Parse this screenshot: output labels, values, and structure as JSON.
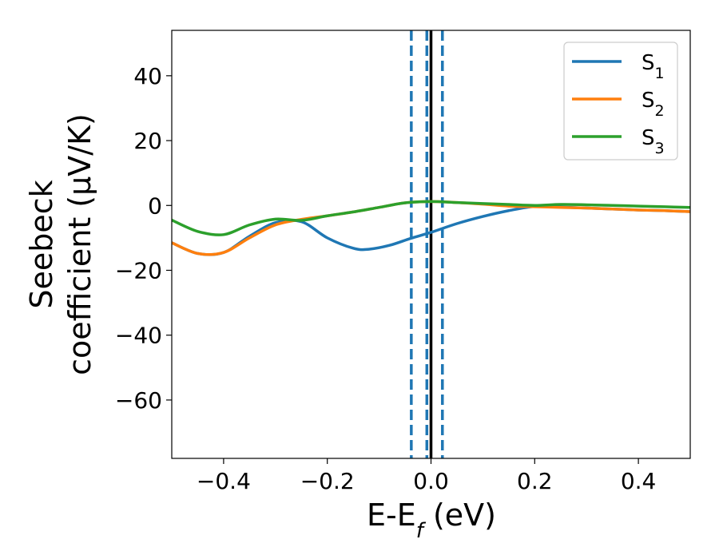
{
  "chart_data": {
    "type": "line",
    "title": "",
    "xlabel": {
      "main": "E-E",
      "sub": "f",
      "suffix": " (eV)"
    },
    "ylabel": {
      "line1": "Seebeck",
      "line2": "coefficient  (μV/K)"
    },
    "xlim": [
      -0.5,
      0.5
    ],
    "ylim": [
      -78,
      54
    ],
    "xticks": [
      -0.4,
      -0.2,
      0.0,
      0.2,
      0.4
    ],
    "xtick_labels": [
      "−0.4",
      "−0.2",
      "0.0",
      "0.2",
      "0.4"
    ],
    "yticks": [
      40,
      20,
      0,
      -20,
      -40,
      -60
    ],
    "ytick_labels": [
      "40",
      "20",
      "0",
      "−20",
      "−40",
      "−60"
    ],
    "grid": false,
    "legend_position": "top-right",
    "series": [
      {
        "name": "S",
        "name_sub": "1",
        "color": "#1f77b4",
        "x": [
          -0.5,
          -0.45,
          -0.4,
          -0.35,
          -0.3,
          -0.25,
          -0.2,
          -0.15,
          -0.12,
          -0.08,
          -0.04,
          0.0,
          0.05,
          0.1,
          0.15,
          0.2,
          0.25,
          0.3,
          0.35,
          0.4,
          0.45,
          0.5
        ],
        "y": [
          -11.5,
          -14.8,
          -14.5,
          -9.5,
          -5.3,
          -5.0,
          -10.0,
          -13.2,
          -13.5,
          -12.3,
          -10.2,
          -8.3,
          -5.6,
          -3.4,
          -1.6,
          -0.3,
          -0.5,
          -0.8,
          -1.1,
          -1.4,
          -1.6,
          -1.9
        ]
      },
      {
        "name": "S",
        "name_sub": "2",
        "color": "#ff7f0e",
        "x": [
          -0.5,
          -0.45,
          -0.4,
          -0.35,
          -0.3,
          -0.25,
          -0.2,
          -0.15,
          -0.1,
          -0.05,
          0.0,
          0.05,
          0.1,
          0.15,
          0.2,
          0.25,
          0.3,
          0.35,
          0.4,
          0.45,
          0.5
        ],
        "y": [
          -11.5,
          -14.8,
          -14.5,
          -10.0,
          -6.0,
          -4.3,
          -3.2,
          -2.0,
          -0.6,
          0.8,
          1.2,
          0.9,
          0.4,
          -0.2,
          -0.4,
          -0.6,
          -0.8,
          -1.1,
          -1.4,
          -1.6,
          -1.9
        ]
      },
      {
        "name": "S",
        "name_sub": "3",
        "color": "#2ca02c",
        "x": [
          -0.5,
          -0.45,
          -0.4,
          -0.35,
          -0.3,
          -0.25,
          -0.2,
          -0.15,
          -0.1,
          -0.05,
          0.0,
          0.05,
          0.1,
          0.15,
          0.2,
          0.25,
          0.3,
          0.35,
          0.4,
          0.45,
          0.5
        ],
        "y": [
          -4.5,
          -8.0,
          -9.0,
          -6.0,
          -4.2,
          -4.6,
          -3.2,
          -2.0,
          -0.6,
          0.8,
          1.2,
          0.9,
          0.6,
          0.3,
          0.0,
          0.3,
          0.2,
          0.0,
          -0.2,
          -0.4,
          -0.6
        ]
      }
    ],
    "vlines": [
      {
        "x": -0.038,
        "color": "#1f77b4",
        "style": "dashed"
      },
      {
        "x": -0.008,
        "color": "#1f77b4",
        "style": "dashed"
      },
      {
        "x": 0.0,
        "color": "#000000",
        "style": "solid"
      },
      {
        "x": 0.022,
        "color": "#1f77b4",
        "style": "dashed"
      }
    ]
  }
}
